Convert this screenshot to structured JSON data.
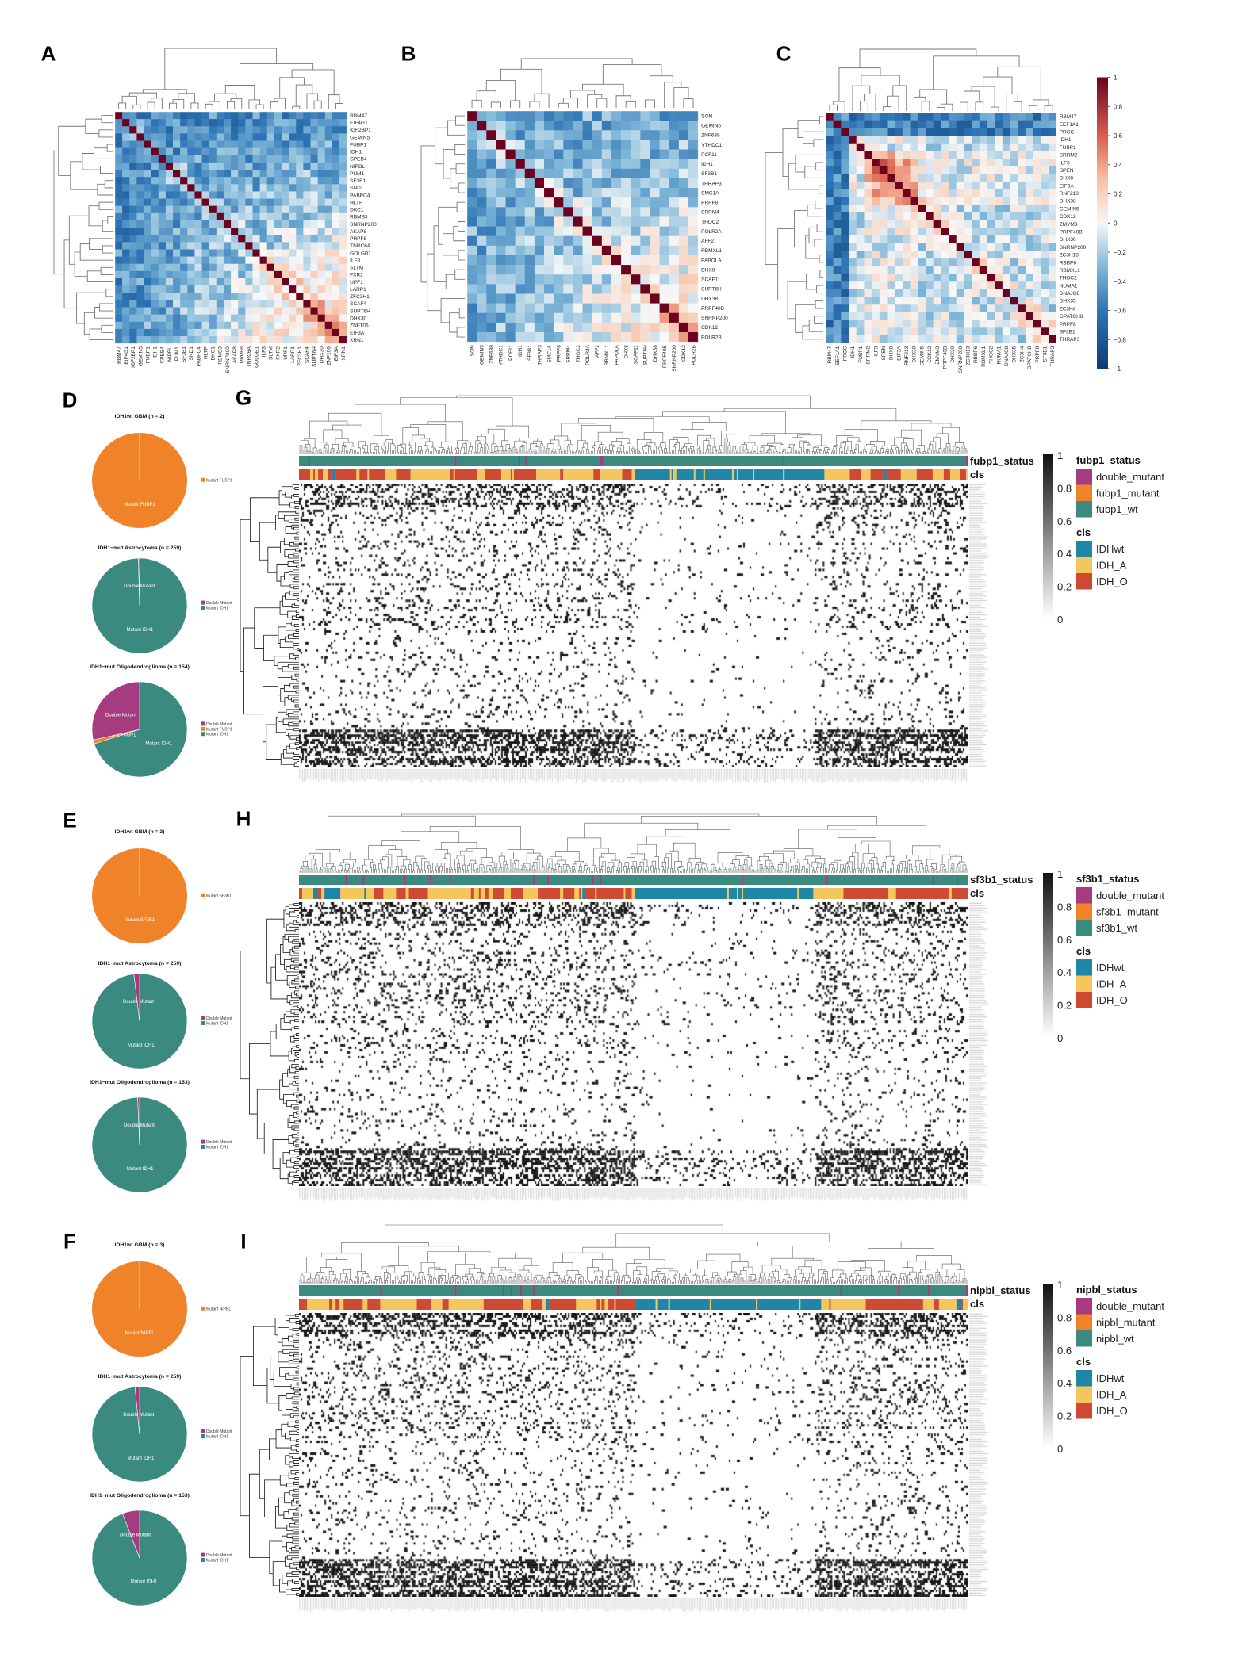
{
  "chart_data": [
    {
      "panel": "A",
      "type": "heatmap",
      "kind": "correlation-matrix",
      "color_range": [
        -1,
        1
      ],
      "genes": [
        "RBM47",
        "EIF4G1",
        "IGF2BP1",
        "GEMIN5",
        "FUBP1",
        "IDH1",
        "CPEB4",
        "NIPBL",
        "PUM1",
        "SF3B1",
        "SND1",
        "PABPC4",
        "HLTF",
        "DKC1",
        "RBMS3",
        "SNRNP200",
        "AKAP8",
        "PRPF8",
        "TNRC6A",
        "GOLGB1",
        "ILF3",
        "SLTM",
        "FXR2",
        "UPF1",
        "LARP1",
        "ZFC3H1",
        "SCAF4",
        "SUPT6H",
        "DHX30",
        "ZNF106",
        "EIF3A",
        "XRN1"
      ]
    },
    {
      "panel": "B",
      "type": "heatmap",
      "kind": "correlation-matrix",
      "color_range": [
        -1,
        1
      ],
      "genes": [
        "SON",
        "GEMIN5",
        "ZNF638",
        "YTHDC1",
        "PCF11",
        "IDH1",
        "SF3B1",
        "THRAP3",
        "SMC1A",
        "PRPF8",
        "SRRM4",
        "THOC2",
        "POLR2A",
        "AFF2",
        "RBMXL1",
        "PAPOLA",
        "DHX8",
        "SCAF11",
        "SUPT6H",
        "DHX38",
        "PRPF40B",
        "SNRNP200",
        "CDK12",
        "POLR2B"
      ]
    },
    {
      "panel": "C",
      "type": "heatmap",
      "kind": "correlation-matrix",
      "color_range": [
        -1,
        1
      ],
      "genes": [
        "RBM47",
        "EEF1A1",
        "PRCC",
        "IDH1",
        "FUBP1",
        "SRRM2",
        "ILF3",
        "SPEN",
        "DHX8",
        "EIF3A",
        "RNF213",
        "DHX38",
        "GEMIN5",
        "CDK12",
        "ZMYM3",
        "PRPF40B",
        "DHX30",
        "SNRNP200",
        "ZC3H13",
        "RBBP6",
        "RBMXL1",
        "THOC2",
        "NUMA1",
        "DNAJC8",
        "DHX35",
        "ZC3H4",
        "GPATCH8",
        "PRPF8",
        "SF3B1",
        "THRAP3"
      ],
      "colorbar_ticks": [
        {
          "label": "1",
          "value": 1
        },
        {
          "label": "0.8",
          "value": 0.8
        },
        {
          "label": "0.6",
          "value": 0.6
        },
        {
          "label": "0.4",
          "value": 0.4
        },
        {
          "label": "0.2",
          "value": 0.2
        },
        {
          "label": "0",
          "value": 0
        },
        {
          "label": "−0.2",
          "value": -0.2
        },
        {
          "label": "−0.4",
          "value": -0.4
        },
        {
          "label": "−0.6",
          "value": -0.6
        },
        {
          "label": "−0.8",
          "value": -0.8
        },
        {
          "label": "−1",
          "value": -1
        }
      ]
    },
    {
      "panel": "D",
      "type": "pie",
      "pies": [
        {
          "title": "IDH1wt GBM (n = 2)",
          "slices": [
            {
              "label": "Mutant FUBP1",
              "value": 2,
              "color": "#f0832a"
            }
          ],
          "legend": [
            "Mutant FUBP1"
          ]
        },
        {
          "title": "IDH1−mut Astrocytoma (n = 259)",
          "slices": [
            {
              "label": "Mutant IDH1",
              "value": 258,
              "color": "#3a8a80"
            },
            {
              "label": "Double Mutant",
              "value": 1,
              "color": "#a63b7f"
            }
          ],
          "legend": [
            "Double Mutant",
            "Mutant IDH1"
          ]
        },
        {
          "title": "IDH1−mut Oligodendroglioma (n = 154)",
          "slices": [
            {
              "label": "Mutant IDH1",
              "value": 108,
              "color": "#3a8a80"
            },
            {
              "label": "Mutant FUBP1",
              "value": 2,
              "color": "#f0832a"
            },
            {
              "label": "Double Mutant",
              "value": 44,
              "color": "#a63b7f"
            }
          ],
          "legend": [
            "Double Mutant",
            "Mutant FUBP1",
            "Mutant IDH1"
          ]
        }
      ]
    },
    {
      "panel": "E",
      "type": "pie",
      "pies": [
        {
          "title": "IDH1wt GBM (n = 3)",
          "slices": [
            {
              "label": "Mutant SF3B1",
              "value": 3,
              "color": "#f0832a"
            }
          ],
          "legend": [
            "Mutant SF3B1"
          ]
        },
        {
          "title": "IDH1−mut Astrocytoma (n = 259)",
          "slices": [
            {
              "label": "Mutant IDH1",
              "value": 254,
              "color": "#3a8a80"
            },
            {
              "label": "Double Mutant",
              "value": 5,
              "color": "#a63b7f"
            }
          ],
          "legend": [
            "Double Mutant",
            "Mutant IDH1"
          ]
        },
        {
          "title": "IDH1−mut Oligodendroglioma (n = 153)",
          "slices": [
            {
              "label": "Mutant IDH1",
              "value": 152,
              "color": "#3a8a80"
            },
            {
              "label": "Double Mutant",
              "value": 1,
              "color": "#a63b7f"
            }
          ],
          "legend": [
            "Double Mutant",
            "Mutant IDH1"
          ]
        }
      ]
    },
    {
      "panel": "F",
      "type": "pie",
      "pies": [
        {
          "title": "IDH1wt GBM (n = 3)",
          "slices": [
            {
              "label": "Mutant NIPBL",
              "value": 3,
              "color": "#f0832a"
            }
          ],
          "legend": [
            "Mutant NIPBL"
          ]
        },
        {
          "title": "IDH1−mut Astrocytoma (n = 259)",
          "slices": [
            {
              "label": "Mutant IDH1",
              "value": 255,
              "color": "#3a8a80"
            },
            {
              "label": "Double Mutant",
              "value": 4,
              "color": "#a63b7f"
            }
          ],
          "legend": [
            "Double Mutant",
            "Mutant IDH1"
          ]
        },
        {
          "title": "IDH1−mut Oligodendroglioma (n = 153)",
          "slices": [
            {
              "label": "Mutant IDH1",
              "value": 144,
              "color": "#3a8a80"
            },
            {
              "label": "Double Mutant",
              "value": 9,
              "color": "#a63b7f"
            }
          ],
          "legend": [
            "Double Mutant",
            "Mutant IDH1"
          ]
        }
      ]
    },
    {
      "panel": "G",
      "type": "heatmap",
      "kind": "clustered-binary",
      "tracks": [
        "fubp1_status",
        "cls"
      ],
      "colorbar_ticks": [
        {
          "label": "1",
          "value": 1
        },
        {
          "label": "0.8",
          "value": 0.8
        },
        {
          "label": "0.6",
          "value": 0.6
        },
        {
          "label": "0.4",
          "value": 0.4
        },
        {
          "label": "0.2",
          "value": 0.2
        },
        {
          "label": "0",
          "value": 0
        }
      ],
      "legend": [
        {
          "title": "fubp1_status",
          "items": [
            {
              "label": "double_mutant",
              "color": "#a63b7f"
            },
            {
              "label": "fubp1_mutant",
              "color": "#f0832a"
            },
            {
              "label": "fubp1_wt",
              "color": "#3a8a80"
            }
          ]
        },
        {
          "title": "cls",
          "items": [
            {
              "label": "IDHwt",
              "color": "#1f86a8"
            },
            {
              "label": "IDH_A",
              "color": "#f5c65e"
            },
            {
              "label": "IDH_O",
              "color": "#cf4a33"
            }
          ]
        }
      ]
    },
    {
      "panel": "H",
      "type": "heatmap",
      "kind": "clustered-binary",
      "tracks": [
        "sf3b1_status",
        "cls"
      ],
      "colorbar_ticks": [
        {
          "label": "1",
          "value": 1
        },
        {
          "label": "0.8",
          "value": 0.8
        },
        {
          "label": "0.6",
          "value": 0.6
        },
        {
          "label": "0.4",
          "value": 0.4
        },
        {
          "label": "0.2",
          "value": 0.2
        },
        {
          "label": "0",
          "value": 0
        }
      ],
      "legend": [
        {
          "title": "sf3b1_status",
          "items": [
            {
              "label": "double_mutant",
              "color": "#a63b7f"
            },
            {
              "label": "sf3b1_mutant",
              "color": "#f0832a"
            },
            {
              "label": "sf3b1_wt",
              "color": "#3a8a80"
            }
          ]
        },
        {
          "title": "cls",
          "items": [
            {
              "label": "IDHwt",
              "color": "#1f86a8"
            },
            {
              "label": "IDH_A",
              "color": "#f5c65e"
            },
            {
              "label": "IDH_O",
              "color": "#cf4a33"
            }
          ]
        }
      ]
    },
    {
      "panel": "I",
      "type": "heatmap",
      "kind": "clustered-binary",
      "tracks": [
        "nipbl_status",
        "cls"
      ],
      "colorbar_ticks": [
        {
          "label": "1",
          "value": 1
        },
        {
          "label": "0.8",
          "value": 0.8
        },
        {
          "label": "0.6",
          "value": 0.6
        },
        {
          "label": "0.4",
          "value": 0.4
        },
        {
          "label": "0.2",
          "value": 0.2
        },
        {
          "label": "0",
          "value": 0
        }
      ],
      "legend": [
        {
          "title": "nipbl_status",
          "items": [
            {
              "label": "double_mutant",
              "color": "#a63b7f"
            },
            {
              "label": "nipbl_mutant",
              "color": "#f0832a"
            },
            {
              "label": "nipbl_wt",
              "color": "#3a8a80"
            }
          ]
        },
        {
          "title": "cls",
          "items": [
            {
              "label": "IDHwt",
              "color": "#1f86a8"
            },
            {
              "label": "IDH_A",
              "color": "#f5c65e"
            },
            {
              "label": "IDH_O",
              "color": "#cf4a33"
            }
          ]
        }
      ]
    }
  ]
}
